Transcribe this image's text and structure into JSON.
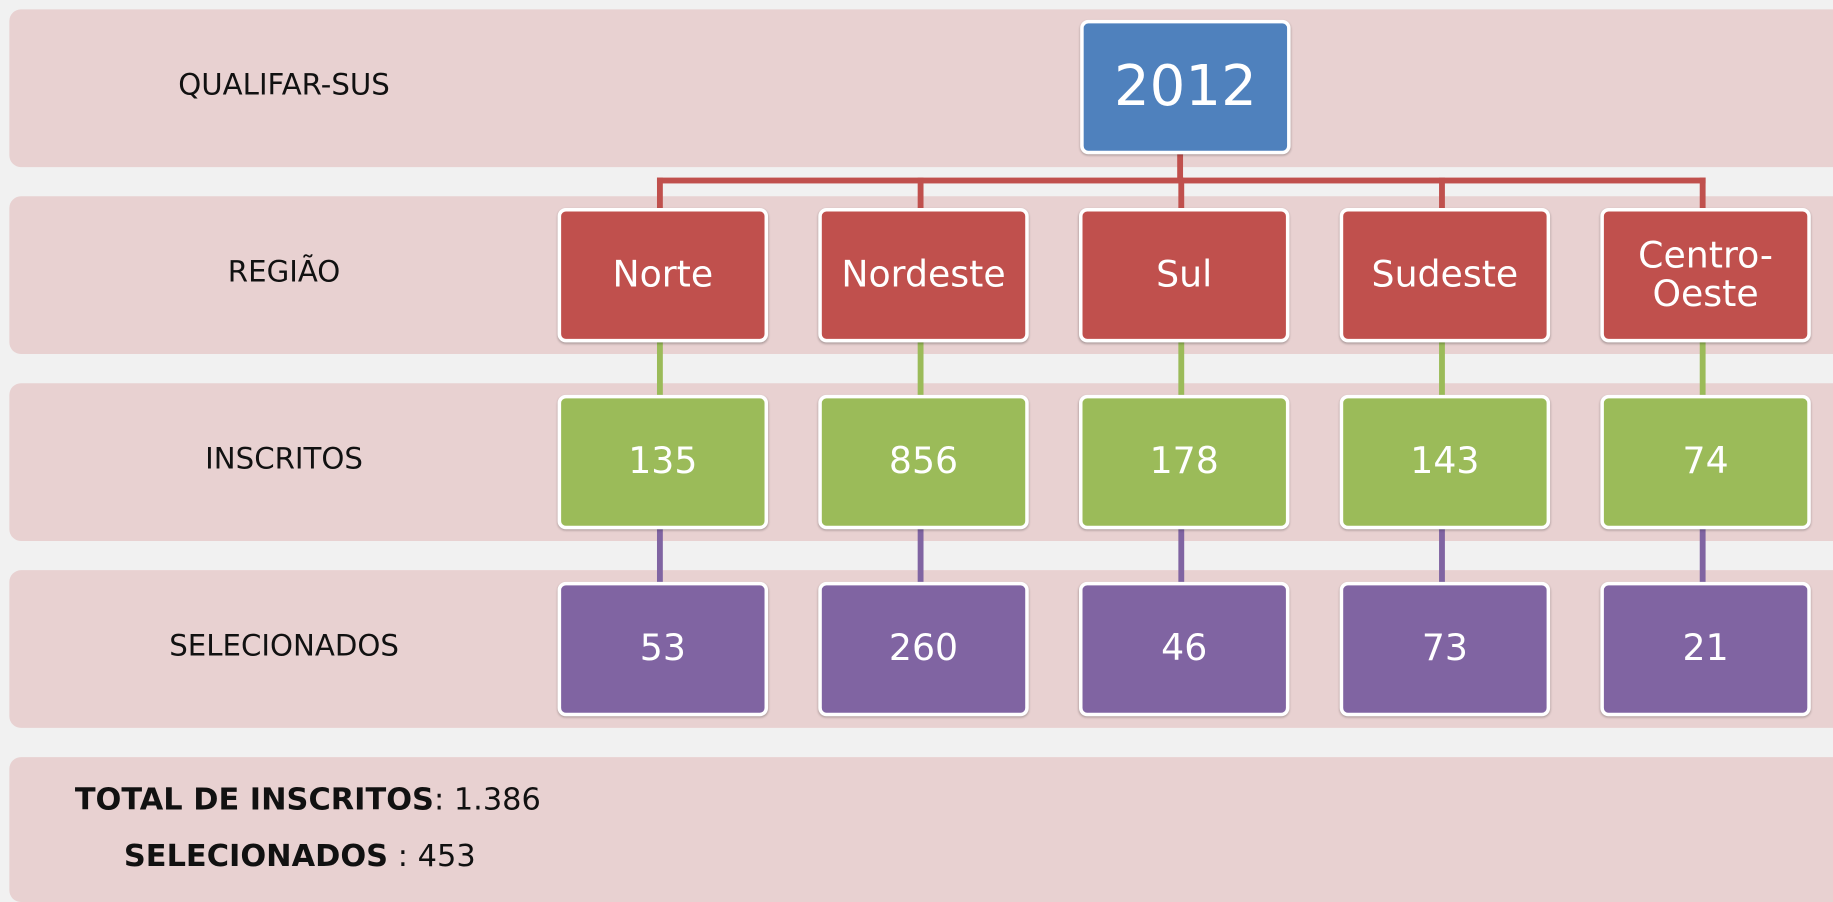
{
  "title": "QUALIFAR-SUS",
  "year": "2012",
  "row_labels": [
    "REGIÃO",
    "INSCRITOS",
    "SELECIONADOS"
  ],
  "regions": [
    {
      "name": "Norte",
      "inscritos": 135,
      "selecionados": 53
    },
    {
      "name": "Nordeste",
      "inscritos": 856,
      "selecionados": 260
    },
    {
      "name": "Sul",
      "inscritos": 178,
      "selecionados": 46
    },
    {
      "name": "Sudeste",
      "inscritos": 143,
      "selecionados": 73
    },
    {
      "name": "Centro-Oeste",
      "inscritos": 74,
      "selecionados": 21
    }
  ],
  "totals": [
    {
      "label": "TOTAL DE INSCRITOS",
      "value": ": 1.386"
    },
    {
      "label": "SELECIONADOS",
      "value": " : 453"
    }
  ]
}
